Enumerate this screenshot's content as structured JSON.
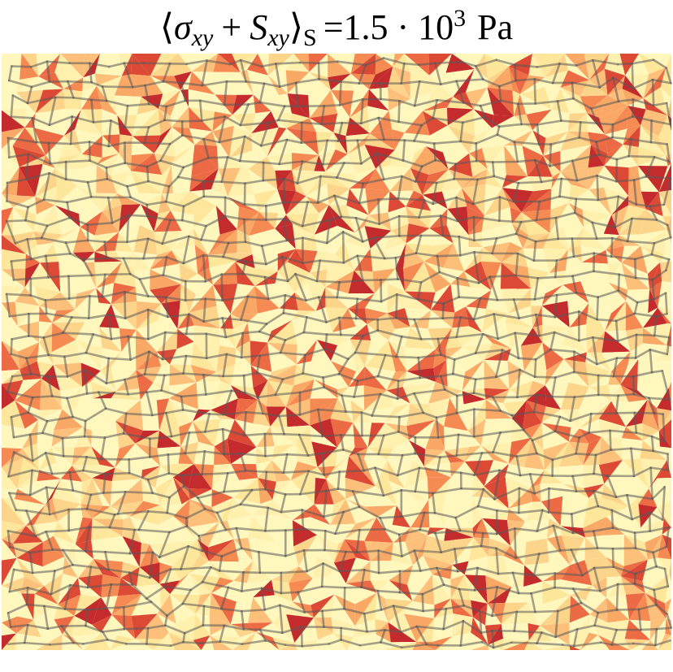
{
  "title": [
    "⟨",
    "σ",
    "xy",
    "+",
    "S",
    "xy",
    "⟩",
    "S",
    "=1.5 · 10",
    "3",
    "Pa"
  ]
}
